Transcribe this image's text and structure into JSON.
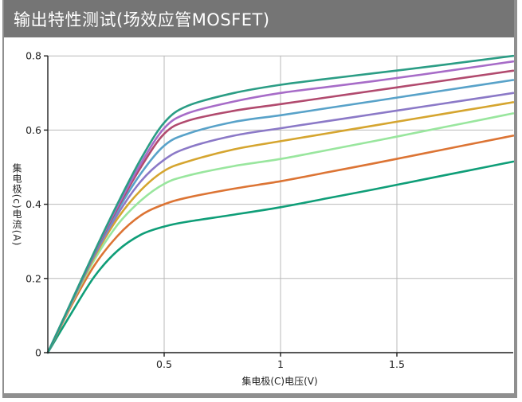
{
  "header": {
    "title": "输出特性测试(场效应管MOSFET)",
    "bg_color": "#757575",
    "text_color": "#ffffff"
  },
  "frame": {
    "border_color": "#8f8f8f",
    "background": "#ffffff"
  },
  "axis_style": {
    "spine_color": "#1f1f1f",
    "grid_color": "#b9b9b9",
    "tick_label_color": "#222222",
    "line_width": 2.6
  },
  "chart_data": {
    "type": "line",
    "title": "输出特性测试(场效应管MOSFET)",
    "xlabel": "集电极(C)电压(V)",
    "ylabel": "集电极(c)电流(A)",
    "xlim": [
      0,
      2.0
    ],
    "ylim": [
      0,
      0.8
    ],
    "grid": true,
    "legend": false,
    "x_ticks": [
      {
        "value": 0.5,
        "label": "0.5"
      },
      {
        "value": 1.0,
        "label": "1"
      },
      {
        "value": 1.5,
        "label": "1.5"
      }
    ],
    "y_ticks": [
      {
        "value": 0.0,
        "label": "0"
      },
      {
        "value": 0.2,
        "label": "0.2"
      },
      {
        "value": 0.4,
        "label": "0.4"
      },
      {
        "value": 0.6,
        "label": "0.6"
      },
      {
        "value": 0.8,
        "label": "0.8"
      }
    ],
    "x": [
      0,
      0.1,
      0.2,
      0.3,
      0.4,
      0.5,
      0.6,
      0.8,
      1.0,
      1.2,
      1.4,
      1.6,
      1.8,
      2.0
    ],
    "series": [
      {
        "id": "s1",
        "color": "#0f9e78",
        "values": [
          0,
          0.105,
          0.205,
          0.275,
          0.318,
          0.34,
          0.353,
          0.372,
          0.392,
          0.416,
          0.44,
          0.465,
          0.49,
          0.515
        ]
      },
      {
        "id": "s2",
        "color": "#dc7434",
        "values": [
          0,
          0.125,
          0.235,
          0.315,
          0.37,
          0.4,
          0.418,
          0.442,
          0.462,
          0.486,
          0.51,
          0.535,
          0.56,
          0.585
        ]
      },
      {
        "id": "s3",
        "color": "#99e69e",
        "values": [
          0,
          0.13,
          0.25,
          0.345,
          0.41,
          0.455,
          0.477,
          0.503,
          0.522,
          0.546,
          0.57,
          0.595,
          0.62,
          0.645
        ]
      },
      {
        "id": "s4",
        "color": "#d5a52f",
        "values": [
          0,
          0.132,
          0.258,
          0.362,
          0.438,
          0.49,
          0.515,
          0.548,
          0.57,
          0.591,
          0.612,
          0.633,
          0.654,
          0.675
        ]
      },
      {
        "id": "s5",
        "color": "#8b79c7",
        "values": [
          0,
          0.133,
          0.262,
          0.373,
          0.462,
          0.52,
          0.552,
          0.585,
          0.605,
          0.624,
          0.643,
          0.662,
          0.681,
          0.7
        ]
      },
      {
        "id": "s6",
        "color": "#58a2c9",
        "values": [
          0,
          0.134,
          0.265,
          0.383,
          0.483,
          0.558,
          0.59,
          0.622,
          0.64,
          0.659,
          0.678,
          0.697,
          0.716,
          0.735
        ]
      },
      {
        "id": "s7",
        "color": "#b14a6e",
        "values": [
          0,
          0.135,
          0.268,
          0.39,
          0.5,
          0.59,
          0.625,
          0.652,
          0.67,
          0.688,
          0.706,
          0.724,
          0.742,
          0.76
        ]
      },
      {
        "id": "s8",
        "color": "#a76cc8",
        "values": [
          0,
          0.135,
          0.27,
          0.395,
          0.51,
          0.605,
          0.645,
          0.677,
          0.7,
          0.716,
          0.732,
          0.749,
          0.767,
          0.785
        ]
      },
      {
        "id": "s9",
        "color": "#2b9d85",
        "values": [
          0,
          0.136,
          0.272,
          0.402,
          0.522,
          0.62,
          0.665,
          0.7,
          0.722,
          0.738,
          0.753,
          0.768,
          0.784,
          0.8
        ]
      }
    ]
  }
}
